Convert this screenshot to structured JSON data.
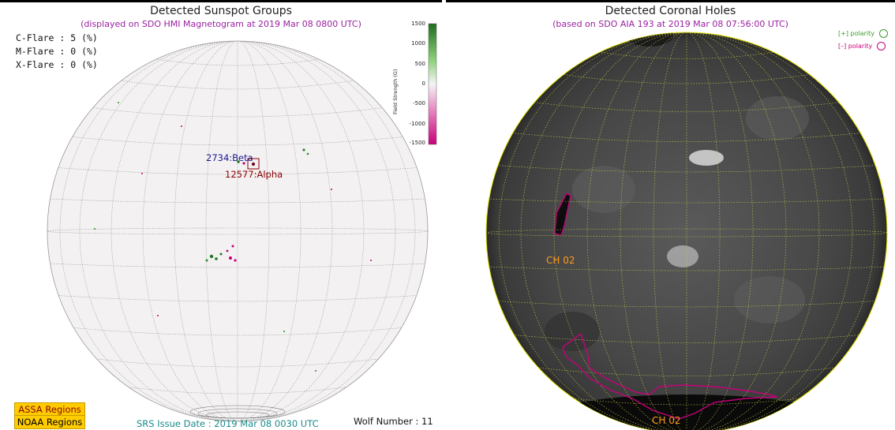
{
  "left_panel": {
    "title": "Detected Sunspot Groups",
    "subtitle": "(displayed on SDO HMI Magnetogram at 2019 Mar 08 0800 UTC)",
    "flares": [
      {
        "label": "C-Flare :  5 (%)"
      },
      {
        "label": "M-Flare :  0 (%)"
      },
      {
        "label": "X-Flare :  0 (%)"
      }
    ],
    "colorbar": {
      "label": "Field Strength (G)",
      "ticks": [
        "1500",
        "1000",
        "500",
        "0",
        "-500",
        "-1000",
        "-1500"
      ],
      "colors": {
        "positive": "#1e7a1e",
        "negative": "#c8007a",
        "zero": "#f2f2f2"
      }
    },
    "regions": [
      {
        "label": "2734:Beta",
        "color": "#1a1a8c"
      },
      {
        "label": "12577:Alpha",
        "color": "#8b0000"
      }
    ],
    "legend": {
      "assa": "ASSA Regions",
      "noaa": "NOAA Regions"
    },
    "srs_issue_date": "SRS Issue Date : 2019 Mar 08 0030 UTC",
    "wolf_number": "Wolf Number : 11"
  },
  "right_panel": {
    "title": "Detected Coronal Holes",
    "subtitle": "(based on SDO AIA 193 at 2019 Mar 08 07:56:00 UTC)",
    "polarity": [
      {
        "label": "[+] polarity",
        "color": "#3a9a2a"
      },
      {
        "label": "[–] polarity",
        "color": "#c8007a"
      }
    ],
    "coronal_holes": [
      {
        "label": "CH 02"
      },
      {
        "label": "CH 02"
      }
    ]
  }
}
